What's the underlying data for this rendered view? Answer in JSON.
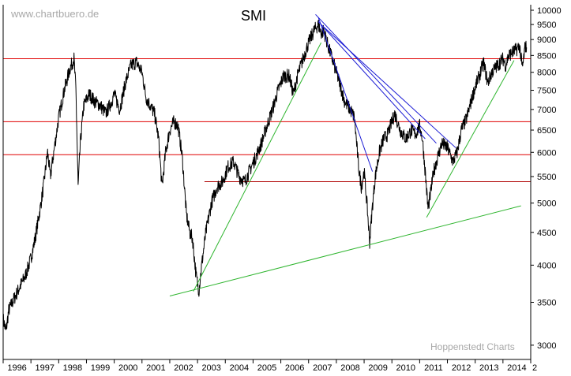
{
  "watermark_top": "www.chartbuero.de",
  "watermark_bottom": "Hoppenstedt Charts",
  "chart_data": {
    "type": "line",
    "title": "SMI",
    "y_scale": "log",
    "ylim": [
      2850,
      10200
    ],
    "xlim": [
      1996.0,
      2015.0
    ],
    "y_ticks": [
      3000,
      3500,
      4000,
      4500,
      5000,
      5500,
      6000,
      6500,
      7000,
      7500,
      8000,
      8500,
      9000,
      9500,
      10000
    ],
    "x_ticks": [
      "1996",
      "1997",
      "1998",
      "1999",
      "2000",
      "2001",
      "2002",
      "2003",
      "2004",
      "2005",
      "2006",
      "2007",
      "2008",
      "2009",
      "2010",
      "2011",
      "2012",
      "2013",
      "2014",
      "2"
    ],
    "grid": false,
    "line_color": "#000000",
    "horizontal_levels": [
      {
        "y": 8400,
        "color": "#e00000"
      },
      {
        "y": 6700,
        "color": "#e00000"
      },
      {
        "y": 5950,
        "color": "#e00000"
      },
      {
        "y": 5400,
        "color": "#b00000",
        "x_from": 2003.25
      }
    ],
    "trendlines": [
      {
        "color": "#2fb52f",
        "from": [
          2002.0,
          3580
        ],
        "to": [
          2014.65,
          4950
        ]
      },
      {
        "color": "#2fb52f",
        "from": [
          2002.85,
          3640
        ],
        "to": [
          2007.45,
          8900
        ]
      },
      {
        "color": "#2fb52f",
        "from": [
          2011.25,
          4750
        ],
        "to": [
          2014.4,
          8350
        ]
      },
      {
        "color": "#1a1ad4",
        "from": [
          2007.35,
          9750
        ],
        "to": [
          2009.3,
          5600
        ]
      },
      {
        "color": "#1a1ad4",
        "from": [
          2007.25,
          9850
        ],
        "to": [
          2011.6,
          6200
        ]
      },
      {
        "color": "#1a1ad4",
        "from": [
          2007.35,
          9600
        ],
        "to": [
          2011.2,
          6300
        ]
      },
      {
        "color": "#1a1ad4",
        "from": [
          2007.45,
          9500
        ],
        "to": [
          2012.3,
          6100
        ]
      }
    ],
    "series": [
      {
        "values": [
          [
            1996.0,
            3300
          ],
          [
            1996.1,
            3150
          ],
          [
            1996.2,
            3400
          ],
          [
            1996.4,
            3550
          ],
          [
            1996.6,
            3700
          ],
          [
            1996.8,
            3850
          ],
          [
            1997.0,
            4100
          ],
          [
            1997.15,
            4400
          ],
          [
            1997.3,
            4800
          ],
          [
            1997.45,
            5300
          ],
          [
            1997.6,
            6000
          ],
          [
            1997.7,
            5500
          ],
          [
            1997.8,
            5900
          ],
          [
            1998.0,
            6800
          ],
          [
            1998.2,
            7500
          ],
          [
            1998.4,
            8100
          ],
          [
            1998.55,
            8400
          ],
          [
            1998.62,
            7500
          ],
          [
            1998.7,
            5300
          ],
          [
            1998.78,
            6200
          ],
          [
            1998.9,
            7100
          ],
          [
            1999.1,
            7400
          ],
          [
            1999.3,
            7200
          ],
          [
            1999.5,
            7100
          ],
          [
            1999.7,
            6900
          ],
          [
            1999.9,
            7200
          ],
          [
            2000.0,
            7400
          ],
          [
            2000.2,
            7000
          ],
          [
            2000.4,
            7700
          ],
          [
            2000.6,
            8200
          ],
          [
            2000.8,
            8300
          ],
          [
            2001.0,
            8000
          ],
          [
            2001.15,
            7300
          ],
          [
            2001.3,
            7100
          ],
          [
            2001.45,
            6900
          ],
          [
            2001.6,
            6300
          ],
          [
            2001.72,
            5300
          ],
          [
            2001.85,
            6000
          ],
          [
            2002.0,
            6500
          ],
          [
            2002.15,
            6700
          ],
          [
            2002.3,
            6600
          ],
          [
            2002.45,
            5900
          ],
          [
            2002.6,
            4800
          ],
          [
            2002.72,
            4500
          ],
          [
            2002.82,
            4400
          ],
          [
            2002.95,
            3850
          ],
          [
            2003.05,
            3650
          ],
          [
            2003.15,
            4000
          ],
          [
            2003.3,
            4500
          ],
          [
            2003.5,
            5000
          ],
          [
            2003.7,
            5300
          ],
          [
            2003.9,
            5400
          ],
          [
            2004.1,
            5700
          ],
          [
            2004.3,
            5800
          ],
          [
            2004.5,
            5500
          ],
          [
            2004.7,
            5400
          ],
          [
            2004.9,
            5650
          ],
          [
            2005.1,
            5900
          ],
          [
            2005.3,
            6200
          ],
          [
            2005.5,
            6600
          ],
          [
            2005.7,
            7000
          ],
          [
            2005.9,
            7500
          ],
          [
            2006.1,
            7900
          ],
          [
            2006.3,
            7900
          ],
          [
            2006.45,
            7400
          ],
          [
            2006.6,
            7900
          ],
          [
            2006.8,
            8400
          ],
          [
            2007.0,
            8900
          ],
          [
            2007.2,
            9300
          ],
          [
            2007.35,
            9500
          ],
          [
            2007.45,
            9200
          ],
          [
            2007.55,
            9300
          ],
          [
            2007.7,
            8800
          ],
          [
            2007.85,
            8400
          ],
          [
            2008.0,
            8000
          ],
          [
            2008.15,
            7600
          ],
          [
            2008.3,
            7200
          ],
          [
            2008.5,
            7000
          ],
          [
            2008.65,
            6800
          ],
          [
            2008.8,
            5700
          ],
          [
            2008.9,
            5300
          ],
          [
            2009.0,
            5600
          ],
          [
            2009.1,
            5000
          ],
          [
            2009.2,
            4350
          ],
          [
            2009.3,
            4950
          ],
          [
            2009.4,
            5500
          ],
          [
            2009.55,
            6000
          ],
          [
            2009.7,
            6300
          ],
          [
            2009.85,
            6400
          ],
          [
            2010.0,
            6700
          ],
          [
            2010.1,
            6900
          ],
          [
            2010.3,
            6500
          ],
          [
            2010.5,
            6300
          ],
          [
            2010.7,
            6500
          ],
          [
            2010.85,
            6400
          ],
          [
            2011.0,
            6600
          ],
          [
            2011.1,
            6300
          ],
          [
            2011.2,
            5600
          ],
          [
            2011.3,
            4900
          ],
          [
            2011.4,
            5200
          ],
          [
            2011.5,
            5600
          ],
          [
            2011.65,
            5900
          ],
          [
            2011.8,
            6200
          ],
          [
            2012.0,
            6100
          ],
          [
            2012.2,
            5800
          ],
          [
            2012.35,
            6000
          ],
          [
            2012.5,
            6500
          ],
          [
            2012.7,
            6800
          ],
          [
            2012.85,
            7200
          ],
          [
            2013.0,
            7600
          ],
          [
            2013.15,
            7900
          ],
          [
            2013.3,
            8300
          ],
          [
            2013.45,
            7700
          ],
          [
            2013.6,
            8000
          ],
          [
            2013.8,
            8200
          ],
          [
            2014.0,
            8400
          ],
          [
            2014.1,
            8200
          ],
          [
            2014.2,
            8500
          ],
          [
            2014.35,
            8600
          ],
          [
            2014.5,
            8700
          ],
          [
            2014.6,
            8800
          ],
          [
            2014.7,
            8100
          ],
          [
            2014.8,
            8800
          ],
          [
            2014.85,
            8750
          ]
        ]
      }
    ]
  }
}
